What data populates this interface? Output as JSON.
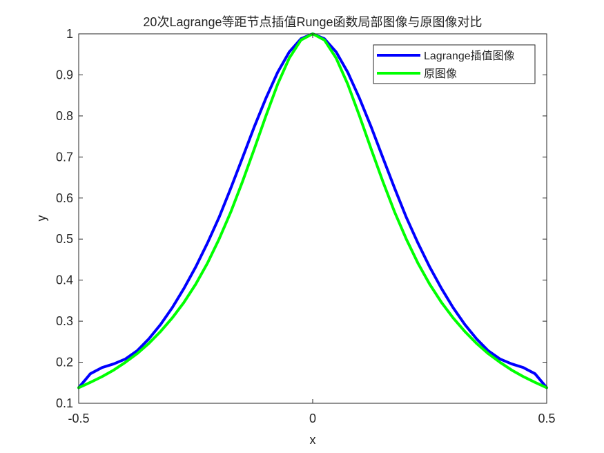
{
  "chart_data": {
    "type": "line",
    "title": "20次Lagrange等距节点插值Runge函数局部图像与原图像对比",
    "xlabel": "x",
    "ylabel": "y",
    "xlim": [
      -0.5,
      0.5
    ],
    "ylim": [
      0.1,
      1
    ],
    "xticks": [
      -0.5,
      0,
      0.5
    ],
    "xtick_labels": [
      "-0.5",
      "0",
      "0.5"
    ],
    "yticks": [
      0.1,
      0.2,
      0.3,
      0.4,
      0.5,
      0.6,
      0.7,
      0.8,
      0.9,
      1
    ],
    "ytick_labels": [
      "0.1",
      "0.2",
      "0.3",
      "0.4",
      "0.5",
      "0.6",
      "0.7",
      "0.8",
      "0.9",
      "1"
    ],
    "grid": false,
    "legend_position": "top-right",
    "series": [
      {
        "name": "Lagrange插值图像",
        "color": "#0000ff",
        "x": [
          -0.5,
          -0.475,
          -0.45,
          -0.425,
          -0.4,
          -0.375,
          -0.35,
          -0.325,
          -0.3,
          -0.275,
          -0.25,
          -0.225,
          -0.2,
          -0.175,
          -0.15,
          -0.125,
          -0.1,
          -0.075,
          -0.05,
          -0.025,
          0,
          0.025,
          0.05,
          0.075,
          0.1,
          0.125,
          0.15,
          0.175,
          0.2,
          0.225,
          0.25,
          0.275,
          0.3,
          0.325,
          0.35,
          0.375,
          0.4,
          0.425,
          0.45,
          0.475,
          0.5
        ],
        "y": [
          0.138,
          0.172,
          0.187,
          0.196,
          0.208,
          0.228,
          0.257,
          0.292,
          0.333,
          0.38,
          0.432,
          0.49,
          0.553,
          0.624,
          0.698,
          0.773,
          0.843,
          0.906,
          0.956,
          0.988,
          1.0,
          0.988,
          0.956,
          0.906,
          0.843,
          0.773,
          0.698,
          0.624,
          0.553,
          0.49,
          0.432,
          0.38,
          0.333,
          0.292,
          0.257,
          0.228,
          0.208,
          0.196,
          0.187,
          0.172,
          0.138
        ]
      },
      {
        "name": "原图像",
        "color": "#00ff00",
        "x": [
          -0.5,
          -0.475,
          -0.45,
          -0.425,
          -0.4,
          -0.375,
          -0.35,
          -0.325,
          -0.3,
          -0.275,
          -0.25,
          -0.225,
          -0.2,
          -0.175,
          -0.15,
          -0.125,
          -0.1,
          -0.075,
          -0.05,
          -0.025,
          0,
          0.025,
          0.05,
          0.075,
          0.1,
          0.125,
          0.15,
          0.175,
          0.2,
          0.225,
          0.25,
          0.275,
          0.3,
          0.325,
          0.35,
          0.375,
          0.4,
          0.425,
          0.45,
          0.475,
          0.5
        ],
        "y": [
          0.138,
          0.151,
          0.165,
          0.181,
          0.2,
          0.221,
          0.246,
          0.275,
          0.308,
          0.346,
          0.39,
          0.441,
          0.5,
          0.566,
          0.64,
          0.719,
          0.8,
          0.877,
          0.941,
          0.985,
          1.0,
          0.985,
          0.941,
          0.877,
          0.8,
          0.719,
          0.64,
          0.566,
          0.5,
          0.441,
          0.39,
          0.346,
          0.308,
          0.275,
          0.246,
          0.221,
          0.2,
          0.181,
          0.165,
          0.151,
          0.138
        ]
      }
    ]
  }
}
